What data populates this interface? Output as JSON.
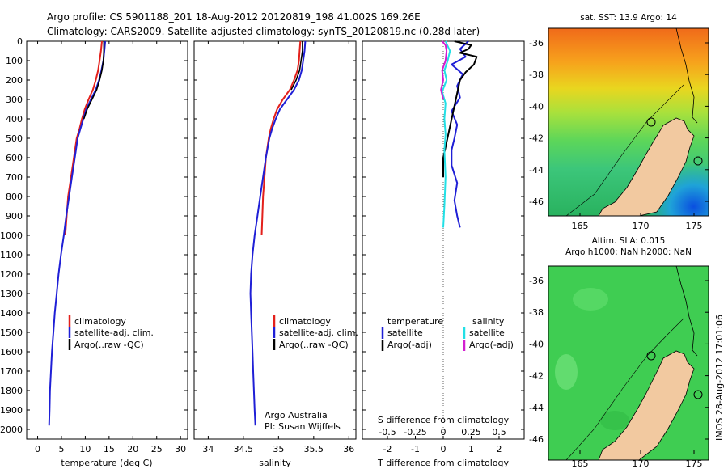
{
  "header": {
    "line1": "Argo profile: CS 5901188_201 18-Aug-2012 20120819_198 41.002S 169.26E",
    "line2": "Climatology: CARS2009. Satellite-adjusted climatology: synTS_20120819.nc (0.28d later)"
  },
  "depth_ticks": [
    0,
    100,
    200,
    300,
    400,
    500,
    600,
    700,
    800,
    900,
    1000,
    1100,
    1200,
    1300,
    1400,
    1500,
    1600,
    1700,
    1800,
    1900,
    2000
  ],
  "colors": {
    "climatology": "#e3201b",
    "satellite": "#1f1fd6",
    "argo": "#000000",
    "salinity_satellite": "#22e0e6",
    "salinity_argo": "#d21fd0"
  },
  "panels": {
    "temperature": {
      "xlabel": "temperature (deg C)",
      "ticks": [
        "0",
        "5",
        "10",
        "15",
        "20",
        "25",
        "30"
      ],
      "legend": [
        "climatology",
        "satellite-adj. clim.",
        "Argo(..raw -QC)"
      ]
    },
    "salinity": {
      "xlabel": "salinity",
      "ticks": [
        "34",
        "34.5",
        "35",
        "35.5",
        "36"
      ],
      "legend": [
        "climatology",
        "satellite-adj. clim.",
        "Argo(..raw -QC)"
      ],
      "credit_line1": "Argo Australia",
      "credit_line2": "PI: Susan Wijffels"
    },
    "difference": {
      "xlabel": "T difference from climatology",
      "s_label": "S difference from climatology",
      "t_ticks": [
        "-2",
        "-1",
        "0",
        "1",
        "2"
      ],
      "s_ticks": [
        "-0.5",
        "-0.25",
        "0",
        "0.25",
        "0.5"
      ],
      "legend_temp_title": "temperature",
      "legend_sal_title": "salinity",
      "legend_temp_items": [
        "satellite",
        "Argo(-adj)"
      ],
      "legend_sal_items": [
        "satellite",
        "Argo(-adj)"
      ]
    }
  },
  "maps": {
    "sst": {
      "title": "sat. SST: 13.9 Argo: 14",
      "lat_ticks": [
        "-36",
        "-38",
        "-40",
        "-42",
        "-44",
        "-46"
      ],
      "lon_ticks": [
        "165",
        "170",
        "175"
      ]
    },
    "sla": {
      "title_line1": "Altim. SLA: 0.015",
      "title_line2": "Argo h1000: NaN h2000: NaN",
      "lat_ticks": [
        "-36",
        "-38",
        "-40",
        "-42",
        "-44",
        "-46"
      ],
      "lon_ticks": [
        "165",
        "170",
        "175"
      ]
    }
  },
  "footer_stamp": "IMOS 28-Aug-2012 17:01:06",
  "chart_data": [
    {
      "type": "line",
      "xlabel": "temperature (deg C)",
      "ylabel": "",
      "xlim": [
        0,
        30
      ],
      "ylim": [
        0,
        2000
      ],
      "y_reversed": true,
      "series": [
        {
          "name": "climatology",
          "x": [
            13.5,
            13.3,
            13.0,
            12.7,
            12.2,
            11.6,
            10.7,
            9.9,
            9.3,
            8.8,
            8.2,
            7.6,
            7.0,
            6.4,
            5.8
          ],
          "y": [
            0,
            50,
            100,
            150,
            200,
            250,
            300,
            350,
            400,
            450,
            500,
            600,
            700,
            800,
            1000
          ]
        },
        {
          "name": "satellite-adj. clim.",
          "x": [
            14.2,
            14.0,
            13.8,
            13.4,
            12.9,
            12.2,
            11.2,
            10.2,
            9.6,
            9.0,
            8.4,
            7.8,
            7.2,
            6.6,
            6.0,
            5.5,
            4.9,
            4.4,
            4.0,
            3.6,
            3.3,
            3.0,
            2.8,
            2.6,
            2.5,
            2.4
          ],
          "y": [
            0,
            50,
            100,
            150,
            200,
            250,
            300,
            350,
            400,
            450,
            500,
            600,
            700,
            800,
            900,
            1000,
            1100,
            1200,
            1300,
            1400,
            1500,
            1600,
            1700,
            1800,
            1900,
            1980
          ]
        },
        {
          "name": "Argo(..raw -QC)",
          "x": [
            13.9,
            13.9,
            13.8,
            13.5,
            13.0,
            12.4,
            11.4,
            10.4,
            9.7
          ],
          "y": [
            0,
            50,
            100,
            150,
            200,
            250,
            300,
            350,
            400
          ]
        }
      ]
    },
    {
      "type": "line",
      "xlabel": "salinity",
      "ylabel": "",
      "xlim": [
        33.8,
        36.1
      ],
      "ylim": [
        0,
        2000
      ],
      "y_reversed": true,
      "series": [
        {
          "name": "climatology",
          "x": [
            35.31,
            35.3,
            35.29,
            35.27,
            35.22,
            35.16,
            35.06,
            34.98,
            34.93,
            34.89,
            34.86,
            34.82,
            34.8,
            34.78,
            34.76
          ],
          "y": [
            0,
            50,
            100,
            150,
            200,
            250,
            300,
            350,
            400,
            450,
            500,
            600,
            700,
            800,
            1000
          ]
        },
        {
          "name": "satellite-adj. clim.",
          "x": [
            35.38,
            35.37,
            35.35,
            35.33,
            35.29,
            35.22,
            35.12,
            35.02,
            34.96,
            34.91,
            34.87,
            34.82,
            34.78,
            34.74,
            34.7,
            34.66,
            34.63,
            34.61,
            34.6,
            34.61,
            34.62,
            34.63,
            34.64,
            34.65,
            34.66,
            34.67
          ],
          "y": [
            0,
            50,
            100,
            150,
            200,
            250,
            300,
            350,
            400,
            450,
            500,
            600,
            700,
            800,
            900,
            1000,
            1100,
            1200,
            1300,
            1400,
            1500,
            1600,
            1700,
            1800,
            1900,
            1980
          ]
        },
        {
          "name": "Argo(..raw -QC)",
          "x": [
            35.34,
            35.34,
            35.32,
            35.3,
            35.25,
            35.18
          ],
          "y": [
            0,
            50,
            100,
            150,
            200,
            250
          ]
        }
      ]
    },
    {
      "type": "line",
      "xlabel": "T difference from climatology",
      "ylabel": "",
      "xlim": [
        -2.9,
        2.9
      ],
      "ylim": [
        0,
        2000
      ],
      "y_reversed": true,
      "secondary_axis": {
        "label": "S difference from climatology",
        "xlim": [
          -0.725,
          0.725
        ]
      },
      "series": [
        {
          "name": "temperature satellite",
          "axis": "T",
          "x": [
            0.9,
            0.6,
            0.8,
            0.3,
            0.7,
            0.5,
            0.6,
            0.3,
            0.5,
            0.4,
            0.3,
            0.3,
            0.5,
            0.4,
            0.5,
            0.6
          ],
          "y": [
            0,
            40,
            80,
            120,
            170,
            230,
            290,
            360,
            430,
            500,
            560,
            640,
            730,
            820,
            900,
            960
          ]
        },
        {
          "name": "temperature Argo(-adj)",
          "axis": "T",
          "x": [
            0.4,
            1.0,
            0.9,
            0.6,
            1.2,
            1.1,
            0.8,
            0.6,
            0.0,
            0.0
          ],
          "y": [
            0,
            20,
            40,
            60,
            80,
            120,
            160,
            200,
            600,
            700
          ]
        },
        {
          "name": "salinity satellite",
          "axis": "S",
          "x": [
            0.02,
            0.06,
            0.04,
            0.01,
            0.03,
            -0.01,
            0.02,
            0.01,
            0.02,
            0.01,
            0.02,
            0.01,
            0.0
          ],
          "y": [
            0,
            50,
            100,
            150,
            200,
            260,
            320,
            400,
            480,
            560,
            700,
            850,
            960
          ]
        },
        {
          "name": "salinity Argo(-adj)",
          "axis": "S",
          "x": [
            -0.01,
            0.02,
            0.03,
            0.02,
            -0.01,
            0.0,
            -0.02,
            0.0
          ],
          "y": [
            0,
            20,
            50,
            100,
            150,
            200,
            250,
            300
          ]
        }
      ]
    }
  ]
}
